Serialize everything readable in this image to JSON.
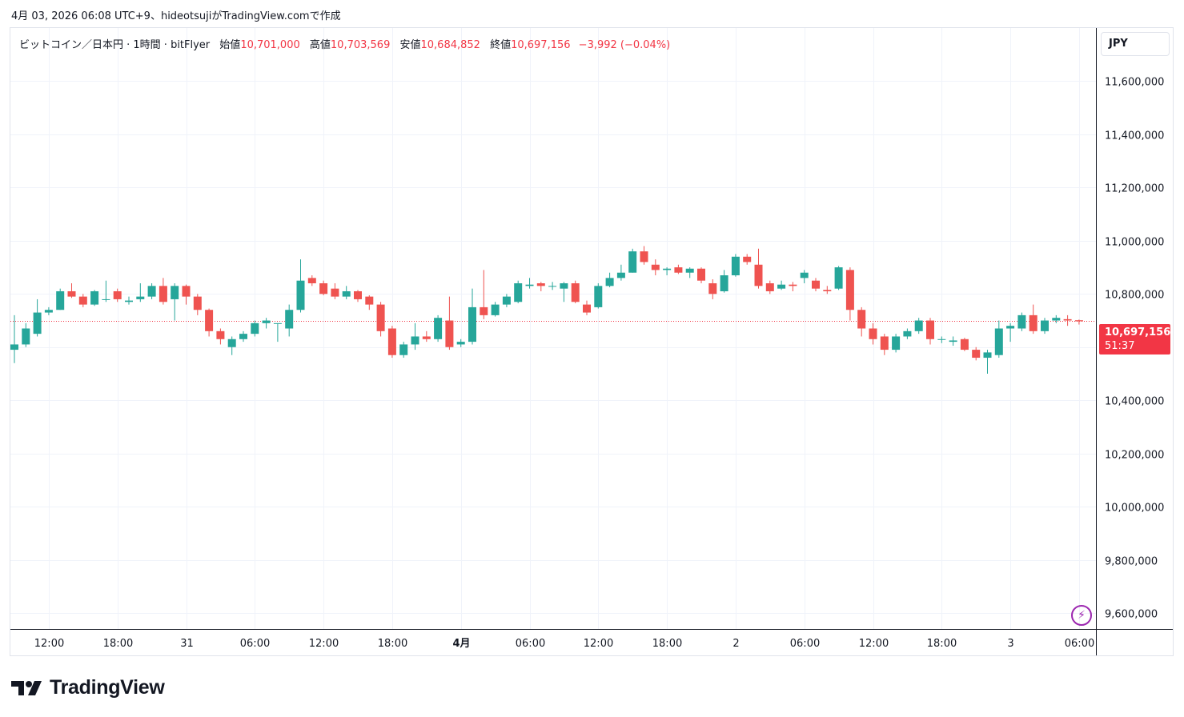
{
  "header": {
    "caption": "4月 03, 2026 06:08 UTC+9、hideotsujiがTradingView.comで作成"
  },
  "legend": {
    "symbol": "ビットコイン／日本円 · 1時間 · bitFlyer",
    "open_label": "始値",
    "open": "10,701,000",
    "high_label": "高値",
    "high": "10,703,569",
    "low_label": "安値",
    "low": "10,684,852",
    "close_label": "終値",
    "close": "10,697,156",
    "change": "−3,992 (−0.04%)"
  },
  "currency_button": "JPY",
  "last_price": {
    "value": "10,697,156",
    "countdown": "51:37"
  },
  "brand": {
    "name": "TradingView"
  },
  "colors": {
    "up": "#26a69a",
    "down": "#ef5350",
    "grid": "#f0f3fa",
    "accent": "#9c27b0"
  },
  "chart_data": {
    "type": "candlestick",
    "interval": "1h",
    "ylim": [
      9540000,
      11800000
    ],
    "y_ticks": [
      {
        "value": 11600000,
        "label": "11,600,000"
      },
      {
        "value": 11400000,
        "label": "11,400,000"
      },
      {
        "value": 11200000,
        "label": "11,200,000"
      },
      {
        "value": 11000000,
        "label": "11,000,000"
      },
      {
        "value": 10800000,
        "label": "10,800,000"
      },
      {
        "value": 10600000,
        "label": "10,600,000"
      },
      {
        "value": 10400000,
        "label": "10,400,000"
      },
      {
        "value": 10200000,
        "label": "10,200,000"
      },
      {
        "value": 10000000,
        "label": "10,000,000"
      },
      {
        "value": 9800000,
        "label": "9,800,000"
      },
      {
        "value": 9600000,
        "label": "9,600,000"
      }
    ],
    "x_ticks": [
      {
        "index": 3,
        "label": "12:00",
        "bold": false
      },
      {
        "index": 9,
        "label": "18:00",
        "bold": false
      },
      {
        "index": 15,
        "label": "31",
        "bold": false
      },
      {
        "index": 21,
        "label": "06:00",
        "bold": false
      },
      {
        "index": 27,
        "label": "12:00",
        "bold": false
      },
      {
        "index": 33,
        "label": "18:00",
        "bold": false
      },
      {
        "index": 39,
        "label": "4月",
        "bold": true
      },
      {
        "index": 45,
        "label": "06:00",
        "bold": false
      },
      {
        "index": 51,
        "label": "12:00",
        "bold": false
      },
      {
        "index": 57,
        "label": "18:00",
        "bold": false
      },
      {
        "index": 63,
        "label": "2",
        "bold": false
      },
      {
        "index": 69,
        "label": "06:00",
        "bold": false
      },
      {
        "index": 75,
        "label": "12:00",
        "bold": false
      },
      {
        "index": 81,
        "label": "18:00",
        "bold": false
      },
      {
        "index": 87,
        "label": "3",
        "bold": false
      },
      {
        "index": 93,
        "label": "06:00",
        "bold": false
      }
    ],
    "last_price_value": 10697156,
    "candles": [
      [
        10590000,
        10610000,
        10540000,
        10720000
      ],
      [
        10610000,
        10670000,
        10600000,
        10690000
      ],
      [
        10650000,
        10730000,
        10640000,
        10780000
      ],
      [
        10730000,
        10740000,
        10720000,
        10750000
      ],
      [
        10740000,
        10810000,
        10740000,
        10820000
      ],
      [
        10810000,
        10790000,
        10785000,
        10840000
      ],
      [
        10790000,
        10760000,
        10750000,
        10800000
      ],
      [
        10760000,
        10810000,
        10755000,
        10815000
      ],
      [
        10780000,
        10780000,
        10770000,
        10850000
      ],
      [
        10810000,
        10780000,
        10770000,
        10820000
      ],
      [
        10770000,
        10775000,
        10760000,
        10790000
      ],
      [
        10780000,
        10790000,
        10770000,
        10840000
      ],
      [
        10790000,
        10830000,
        10780000,
        10840000
      ],
      [
        10830000,
        10770000,
        10760000,
        10860000
      ],
      [
        10780000,
        10830000,
        10700000,
        10840000
      ],
      [
        10830000,
        10790000,
        10760000,
        10835000
      ],
      [
        10790000,
        10740000,
        10720000,
        10800000
      ],
      [
        10740000,
        10660000,
        10640000,
        10745000
      ],
      [
        10660000,
        10630000,
        10610000,
        10670000
      ],
      [
        10600000,
        10630000,
        10570000,
        10640000
      ],
      [
        10630000,
        10650000,
        10620000,
        10660000
      ],
      [
        10650000,
        10690000,
        10640000,
        10700000
      ],
      [
        10690000,
        10700000,
        10670000,
        10710000
      ],
      [
        10690000,
        10690000,
        10620000,
        10690000
      ],
      [
        10670000,
        10740000,
        10640000,
        10760000
      ],
      [
        10740000,
        10850000,
        10730000,
        10930000
      ],
      [
        10860000,
        10840000,
        10830000,
        10870000
      ],
      [
        10840000,
        10800000,
        10795000,
        10850000
      ],
      [
        10820000,
        10790000,
        10780000,
        10840000
      ],
      [
        10790000,
        10810000,
        10780000,
        10830000
      ],
      [
        10810000,
        10780000,
        10770000,
        10815000
      ],
      [
        10790000,
        10760000,
        10740000,
        10795000
      ],
      [
        10760000,
        10660000,
        10640000,
        10770000
      ],
      [
        10670000,
        10570000,
        10560000,
        10680000
      ],
      [
        10570000,
        10610000,
        10560000,
        10620000
      ],
      [
        10610000,
        10640000,
        10590000,
        10690000
      ],
      [
        10640000,
        10630000,
        10620000,
        10660000
      ],
      [
        10630000,
        10710000,
        10620000,
        10720000
      ],
      [
        10700000,
        10600000,
        10590000,
        10790000
      ],
      [
        10610000,
        10620000,
        10600000,
        10630000
      ],
      [
        10620000,
        10750000,
        10610000,
        10820000
      ],
      [
        10750000,
        10720000,
        10705000,
        10890000
      ],
      [
        10720000,
        10760000,
        10715000,
        10770000
      ],
      [
        10760000,
        10790000,
        10750000,
        10800000
      ],
      [
        10770000,
        10840000,
        10765000,
        10850000
      ],
      [
        10830000,
        10835000,
        10820000,
        10860000
      ],
      [
        10840000,
        10830000,
        10810000,
        10845000
      ],
      [
        10830000,
        10830000,
        10815000,
        10845000
      ],
      [
        10820000,
        10840000,
        10770000,
        10845000
      ],
      [
        10840000,
        10770000,
        10765000,
        10850000
      ],
      [
        10760000,
        10730000,
        10720000,
        10775000
      ],
      [
        10750000,
        10830000,
        10745000,
        10840000
      ],
      [
        10830000,
        10860000,
        10825000,
        10880000
      ],
      [
        10860000,
        10880000,
        10850000,
        10910000
      ],
      [
        10880000,
        10960000,
        10880000,
        10970000
      ],
      [
        10960000,
        10920000,
        10910000,
        10980000
      ],
      [
        10910000,
        10890000,
        10870000,
        10930000
      ],
      [
        10890000,
        10895000,
        10870000,
        10900000
      ],
      [
        10900000,
        10880000,
        10875000,
        10910000
      ],
      [
        10880000,
        10895000,
        10860000,
        10900000
      ],
      [
        10895000,
        10850000,
        10840000,
        10900000
      ],
      [
        10840000,
        10800000,
        10780000,
        10855000
      ],
      [
        10810000,
        10870000,
        10805000,
        10890000
      ],
      [
        10870000,
        10940000,
        10865000,
        10950000
      ],
      [
        10940000,
        10920000,
        10910000,
        10950000
      ],
      [
        10910000,
        10830000,
        10820000,
        10970000
      ],
      [
        10840000,
        10810000,
        10800000,
        10850000
      ],
      [
        10820000,
        10835000,
        10815000,
        10850000
      ],
      [
        10835000,
        10830000,
        10810000,
        10845000
      ],
      [
        10860000,
        10880000,
        10840000,
        10890000
      ],
      [
        10850000,
        10820000,
        10810000,
        10860000
      ],
      [
        10815000,
        10810000,
        10800000,
        10830000
      ],
      [
        10820000,
        10900000,
        10815000,
        10905000
      ],
      [
        10890000,
        10740000,
        10700000,
        10900000
      ],
      [
        10740000,
        10670000,
        10640000,
        10750000
      ],
      [
        10670000,
        10630000,
        10610000,
        10690000
      ],
      [
        10640000,
        10590000,
        10570000,
        10650000
      ],
      [
        10590000,
        10640000,
        10580000,
        10650000
      ],
      [
        10640000,
        10660000,
        10630000,
        10670000
      ],
      [
        10660000,
        10700000,
        10650000,
        10710000
      ],
      [
        10700000,
        10630000,
        10610000,
        10710000
      ],
      [
        10630000,
        10630000,
        10615000,
        10640000
      ],
      [
        10620000,
        10625000,
        10605000,
        10640000
      ],
      [
        10630000,
        10590000,
        10585000,
        10635000
      ],
      [
        10590000,
        10560000,
        10550000,
        10600000
      ],
      [
        10560000,
        10580000,
        10500000,
        10590000
      ],
      [
        10570000,
        10670000,
        10560000,
        10700000
      ],
      [
        10670000,
        10680000,
        10620000,
        10690000
      ],
      [
        10670000,
        10720000,
        10660000,
        10730000
      ],
      [
        10720000,
        10660000,
        10650000,
        10760000
      ],
      [
        10660000,
        10700000,
        10650000,
        10710000
      ],
      [
        10700000,
        10710000,
        10690000,
        10720000
      ],
      [
        10705000,
        10700000,
        10680000,
        10720000
      ],
      [
        10701000,
        10697156,
        10684852,
        10703569
      ]
    ]
  }
}
